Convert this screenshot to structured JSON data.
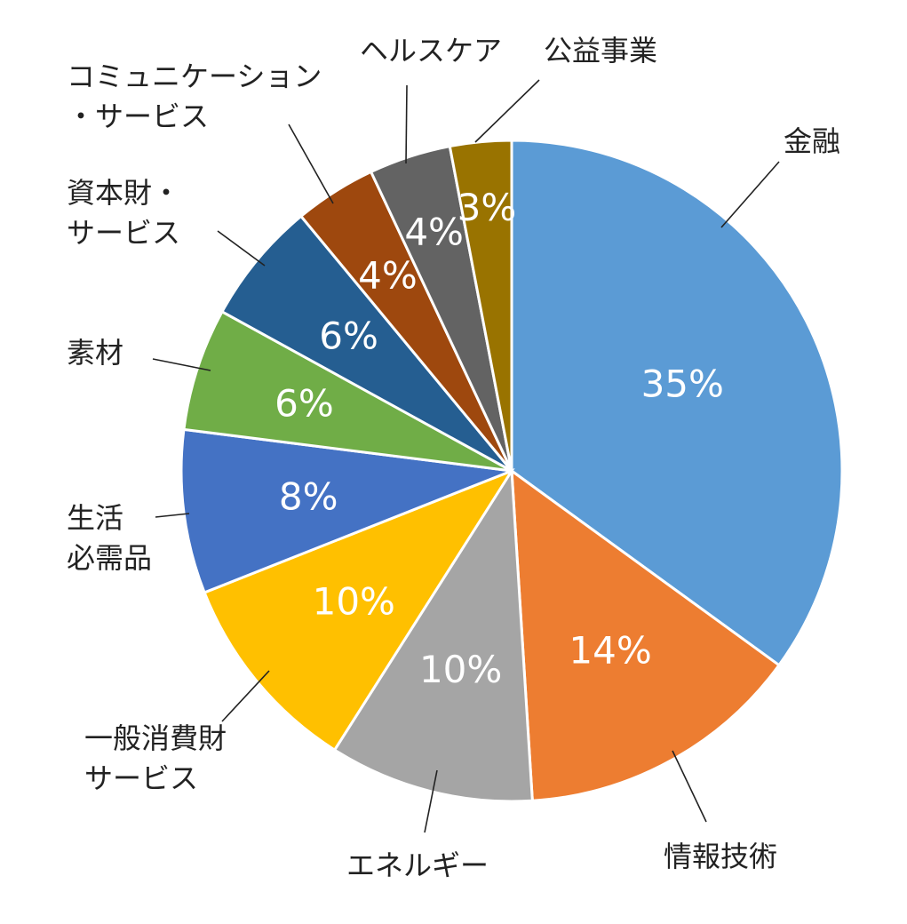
{
  "chart_data": {
    "type": "pie",
    "title": "",
    "slices": [
      {
        "label": "金融",
        "value": 35,
        "value_label": "35%",
        "color": "#5B9BD5"
      },
      {
        "label": "情報技術",
        "value": 14,
        "value_label": "14%",
        "color": "#ED7D31"
      },
      {
        "label": "エネルギー",
        "value": 10,
        "value_label": "10%",
        "color": "#A5A5A5"
      },
      {
        "label": "一般消費財\nサービス",
        "value": 10,
        "value_label": "10%",
        "color": "#FFC000"
      },
      {
        "label": "生活\n必需品",
        "value": 8,
        "value_label": "8%",
        "color": "#4472C4"
      },
      {
        "label": "素材",
        "value": 6,
        "value_label": "6%",
        "color": "#70AD47"
      },
      {
        "label": "資本財・\nサービス",
        "value": 6,
        "value_label": "6%",
        "color": "#255E91"
      },
      {
        "label": "コミュニケーション\n・サービス",
        "value": 4,
        "value_label": "4%",
        "color": "#9E480E"
      },
      {
        "label": "ヘルスケア",
        "value": 4,
        "value_label": "4%",
        "color": "#636363"
      },
      {
        "label": "公益事業",
        "value": 3,
        "value_label": "3%",
        "color": "#997300"
      }
    ],
    "start_angle": "12 o'clock",
    "direction": "clockwise",
    "legend": "none"
  }
}
